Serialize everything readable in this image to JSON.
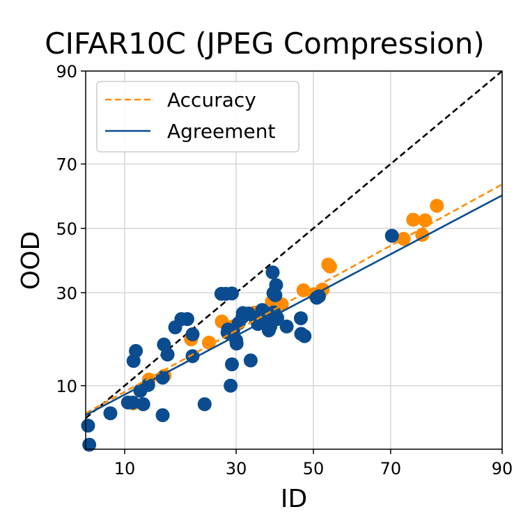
{
  "chart_data": {
    "type": "scatter",
    "title": "CIFAR10C (JPEG Compression)",
    "xlabel": "ID",
    "ylabel": "OOD",
    "xticks": [
      "10",
      "30",
      "50",
      "70",
      "90"
    ],
    "yticks": [
      "10",
      "30",
      "50",
      "70",
      "90"
    ],
    "scale": "probit",
    "xlim": [
      6.1,
      90
    ],
    "ylim": [
      3.6,
      90
    ],
    "grid": true,
    "legend": {
      "position": "top-left",
      "entries": [
        {
          "label": "Accuracy",
          "style": "dashed",
          "color": "#ff8c00"
        },
        {
          "label": "Agreement",
          "style": "solid",
          "color": "#0a4c8f"
        }
      ]
    },
    "diagonal": {
      "style": "dashed",
      "color": "#000000"
    },
    "series": [
      {
        "name": "Accuracy",
        "color": "#ff8c00",
        "fit": {
          "x": [
            6.1,
            90
          ],
          "y": [
            6.6,
            64
          ]
        },
        "points": [
          {
            "x": 11.1,
            "y": 7.7
          },
          {
            "x": 13.2,
            "y": 10.9
          },
          {
            "x": 15.6,
            "y": 11.5
          },
          {
            "x": 20.3,
            "y": 18.3
          },
          {
            "x": 23.9,
            "y": 17.6
          },
          {
            "x": 26.7,
            "y": 22.4
          },
          {
            "x": 29.2,
            "y": 21.2
          },
          {
            "x": 31.7,
            "y": 23.7
          },
          {
            "x": 34.4,
            "y": 24.6
          },
          {
            "x": 36.7,
            "y": 25.2
          },
          {
            "x": 38.9,
            "y": 27.5
          },
          {
            "x": 41.5,
            "y": 26.8
          },
          {
            "x": 47.3,
            "y": 30.7
          },
          {
            "x": 50.2,
            "y": 29.6
          },
          {
            "x": 52.5,
            "y": 30.9
          },
          {
            "x": 54.0,
            "y": 38.4
          },
          {
            "x": 54.5,
            "y": 37.8
          },
          {
            "x": 73.0,
            "y": 46.6
          },
          {
            "x": 75.1,
            "y": 52.8
          },
          {
            "x": 77.0,
            "y": 47.9
          },
          {
            "x": 77.6,
            "y": 52.6
          },
          {
            "x": 79.9,
            "y": 57.3
          }
        ]
      },
      {
        "name": "Agreement",
        "color": "#0a4c8f",
        "fit": {
          "x": [
            6.1,
            90
          ],
          "y": [
            6.4,
            60.6
          ]
        },
        "points": [
          {
            "x": 6.3,
            "y": 5.4
          },
          {
            "x": 6.4,
            "y": 3.9
          },
          {
            "x": 8.4,
            "y": 6.6
          },
          {
            "x": 10.4,
            "y": 7.8
          },
          {
            "x": 11.0,
            "y": 7.8
          },
          {
            "x": 11.1,
            "y": 14.0
          },
          {
            "x": 11.4,
            "y": 15.9
          },
          {
            "x": 12.0,
            "y": 9.3
          },
          {
            "x": 12.4,
            "y": 7.6
          },
          {
            "x": 13.1,
            "y": 10.1
          },
          {
            "x": 15.3,
            "y": 6.4
          },
          {
            "x": 15.3,
            "y": 11.2
          },
          {
            "x": 15.5,
            "y": 17.2
          },
          {
            "x": 16.1,
            "y": 15.2
          },
          {
            "x": 17.4,
            "y": 21.0
          },
          {
            "x": 18.5,
            "y": 23.0
          },
          {
            "x": 19.6,
            "y": 23.0
          },
          {
            "x": 20.6,
            "y": 19.4
          },
          {
            "x": 20.6,
            "y": 14.9
          },
          {
            "x": 23.0,
            "y": 7.6
          },
          {
            "x": 26.6,
            "y": 29.7
          },
          {
            "x": 27.6,
            "y": 29.7
          },
          {
            "x": 28.0,
            "y": 19.8
          },
          {
            "x": 28.1,
            "y": 20.5
          },
          {
            "x": 28.7,
            "y": 10.0
          },
          {
            "x": 29.0,
            "y": 13.4
          },
          {
            "x": 29.0,
            "y": 29.8
          },
          {
            "x": 29.3,
            "y": 20.2
          },
          {
            "x": 30.0,
            "y": 18.1
          },
          {
            "x": 30.1,
            "y": 17.4
          },
          {
            "x": 30.6,
            "y": 22.0
          },
          {
            "x": 31.5,
            "y": 23.5
          },
          {
            "x": 31.6,
            "y": 24.5
          },
          {
            "x": 33.0,
            "y": 24.4
          },
          {
            "x": 33.5,
            "y": 14.1
          },
          {
            "x": 34.7,
            "y": 23.1
          },
          {
            "x": 35.3,
            "y": 21.8
          },
          {
            "x": 36.4,
            "y": 25.3
          },
          {
            "x": 36.7,
            "y": 22.9
          },
          {
            "x": 37.8,
            "y": 21.4
          },
          {
            "x": 38.1,
            "y": 20.3
          },
          {
            "x": 38.5,
            "y": 21.2
          },
          {
            "x": 39.1,
            "y": 36.0
          },
          {
            "x": 39.3,
            "y": 29.9
          },
          {
            "x": 39.4,
            "y": 24.7
          },
          {
            "x": 39.8,
            "y": 29.3
          },
          {
            "x": 40.0,
            "y": 32.2
          },
          {
            "x": 40.2,
            "y": 23.0
          },
          {
            "x": 40.3,
            "y": 23.3
          },
          {
            "x": 42.8,
            "y": 21.2
          },
          {
            "x": 46.6,
            "y": 23.2
          },
          {
            "x": 46.7,
            "y": 19.5
          },
          {
            "x": 47.6,
            "y": 19.0
          },
          {
            "x": 50.9,
            "y": 28.6
          },
          {
            "x": 51.5,
            "y": 29.0
          },
          {
            "x": 70.3,
            "y": 47.6
          }
        ]
      }
    ]
  }
}
